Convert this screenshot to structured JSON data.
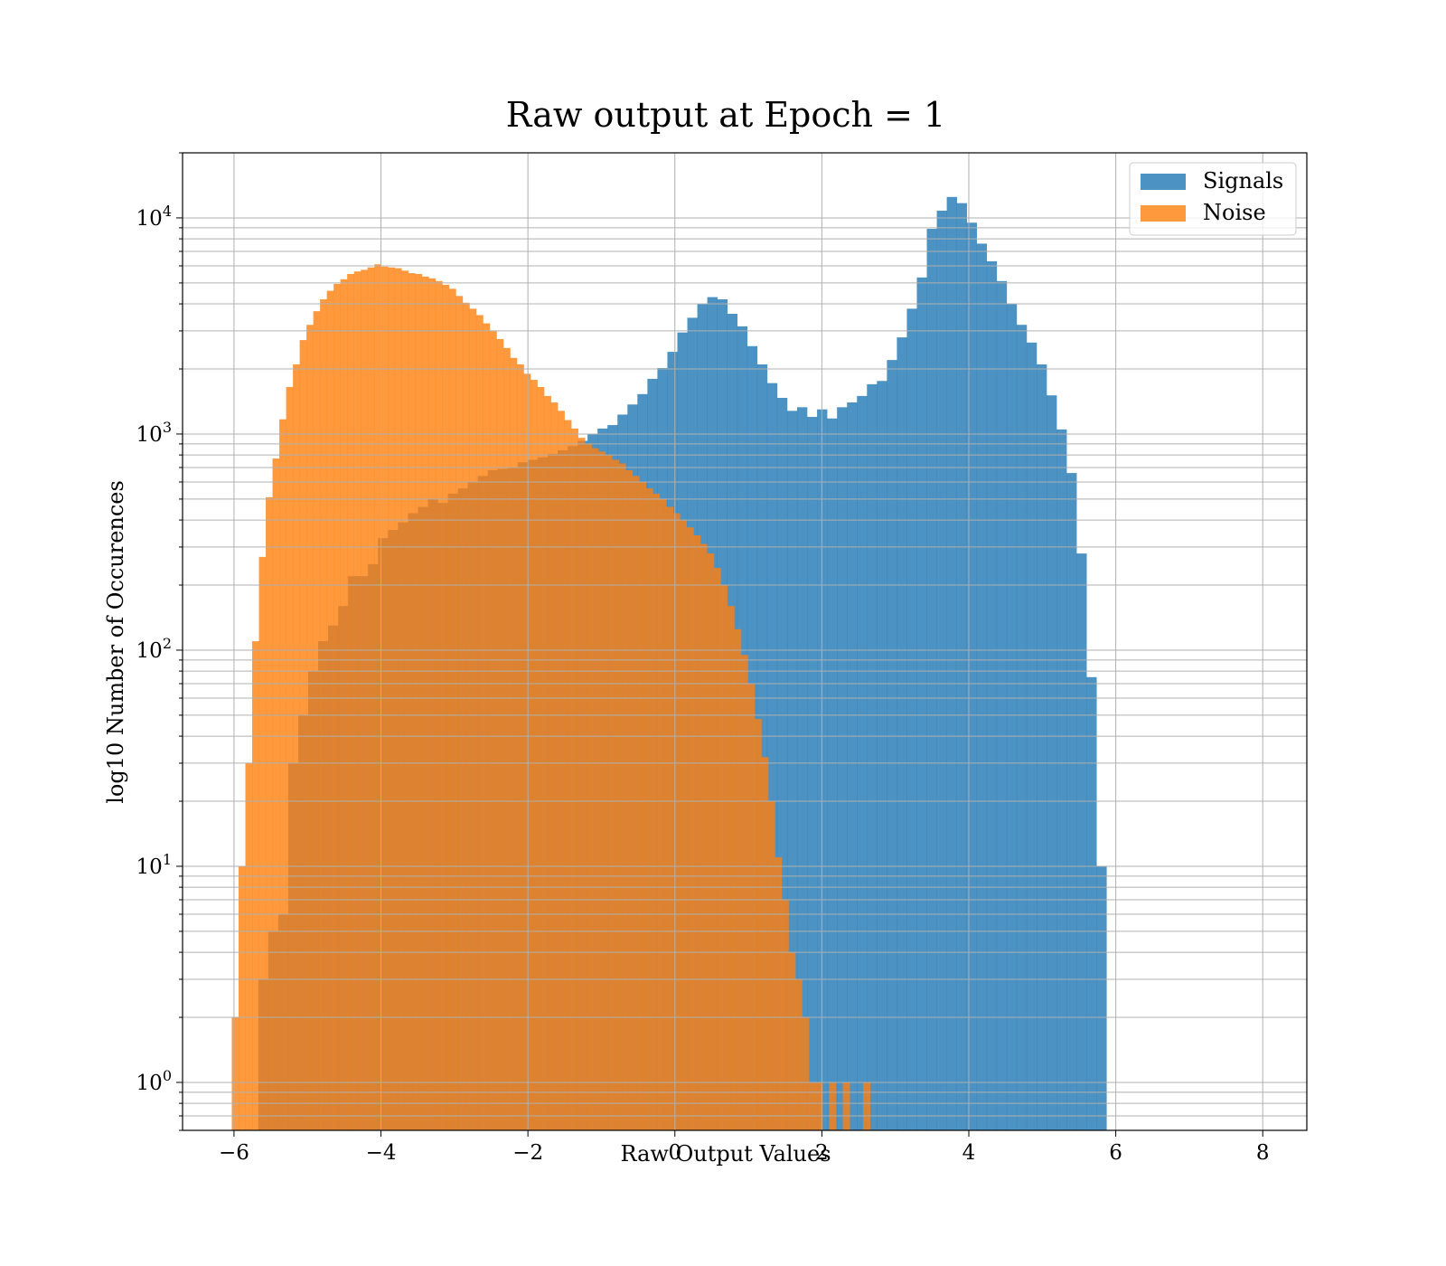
{
  "chart_data": {
    "type": "bar",
    "subtype": "histogram",
    "title": "Raw output at Epoch = 1",
    "xlabel": "Raw Output Values",
    "ylabel": "log10 Number of Occurences",
    "yscale": "log",
    "xlim": [
      -6.7,
      8.6
    ],
    "ylim": [
      0.6,
      20000
    ],
    "grid": true,
    "legend_position": "top-right",
    "x_ticks": [
      {
        "value": -6,
        "label": "−6"
      },
      {
        "value": -4,
        "label": "−4"
      },
      {
        "value": -2,
        "label": "−2"
      },
      {
        "value": 0,
        "label": "0"
      },
      {
        "value": 2,
        "label": "2"
      },
      {
        "value": 4,
        "label": "4"
      },
      {
        "value": 6,
        "label": "6"
      },
      {
        "value": 8,
        "label": "8"
      }
    ],
    "y_ticks": [
      {
        "value": 1,
        "base": "10",
        "exp": "0"
      },
      {
        "value": 10,
        "base": "10",
        "exp": "1"
      },
      {
        "value": 100,
        "base": "10",
        "exp": "2"
      },
      {
        "value": 1000,
        "base": "10",
        "exp": "3"
      },
      {
        "value": 10000,
        "base": "10",
        "exp": "4"
      }
    ],
    "series": [
      {
        "name": "Signals",
        "color": "#1f77b4",
        "opacity": 0.8,
        "bin_start": -5.67,
        "bin_width": 0.1358,
        "counts": [
          3,
          5,
          6,
          30,
          50,
          80,
          110,
          130,
          160,
          220,
          220,
          250,
          330,
          360,
          390,
          430,
          460,
          500,
          480,
          530,
          560,
          600,
          640,
          680,
          690,
          700,
          740,
          760,
          780,
          810,
          840,
          880,
          930,
          1000,
          1060,
          1100,
          1230,
          1370,
          1530,
          1800,
          2020,
          2400,
          2950,
          3450,
          4000,
          4300,
          4200,
          3600,
          3150,
          2550,
          2100,
          1720,
          1470,
          1280,
          1330,
          1200,
          1300,
          1180,
          1330,
          1400,
          1500,
          1700,
          1760,
          2200,
          2800,
          3800,
          5300,
          8900,
          10800,
          12500,
          11700,
          9500,
          7600,
          6300,
          5100,
          4000,
          3200,
          2650,
          2100,
          1510,
          1050,
          660,
          280,
          75,
          10
        ]
      },
      {
        "name": "Noise",
        "color": "#ff7f0e",
        "opacity": 0.8,
        "bin_start": -6.03,
        "bin_width": 0.0924,
        "counts": [
          2,
          10,
          30,
          110,
          270,
          510,
          770,
          1170,
          1650,
          2100,
          2720,
          3200,
          3700,
          4200,
          4600,
          4950,
          5200,
          5500,
          5650,
          5750,
          5900,
          6100,
          5950,
          5900,
          5850,
          5700,
          5550,
          5500,
          5350,
          5250,
          5100,
          4900,
          4700,
          4350,
          4050,
          3800,
          3550,
          3250,
          3000,
          2750,
          2500,
          2250,
          2100,
          1900,
          1780,
          1650,
          1500,
          1400,
          1280,
          1160,
          1060,
          960,
          900,
          860,
          830,
          800,
          760,
          730,
          680,
          640,
          600,
          560,
          530,
          500,
          460,
          430,
          400,
          370,
          340,
          310,
          280,
          240,
          200,
          160,
          125,
          95,
          70,
          48,
          32,
          20,
          11,
          7,
          4,
          3,
          2,
          1,
          1,
          0,
          1,
          0,
          1,
          0,
          0,
          1
        ]
      }
    ]
  }
}
